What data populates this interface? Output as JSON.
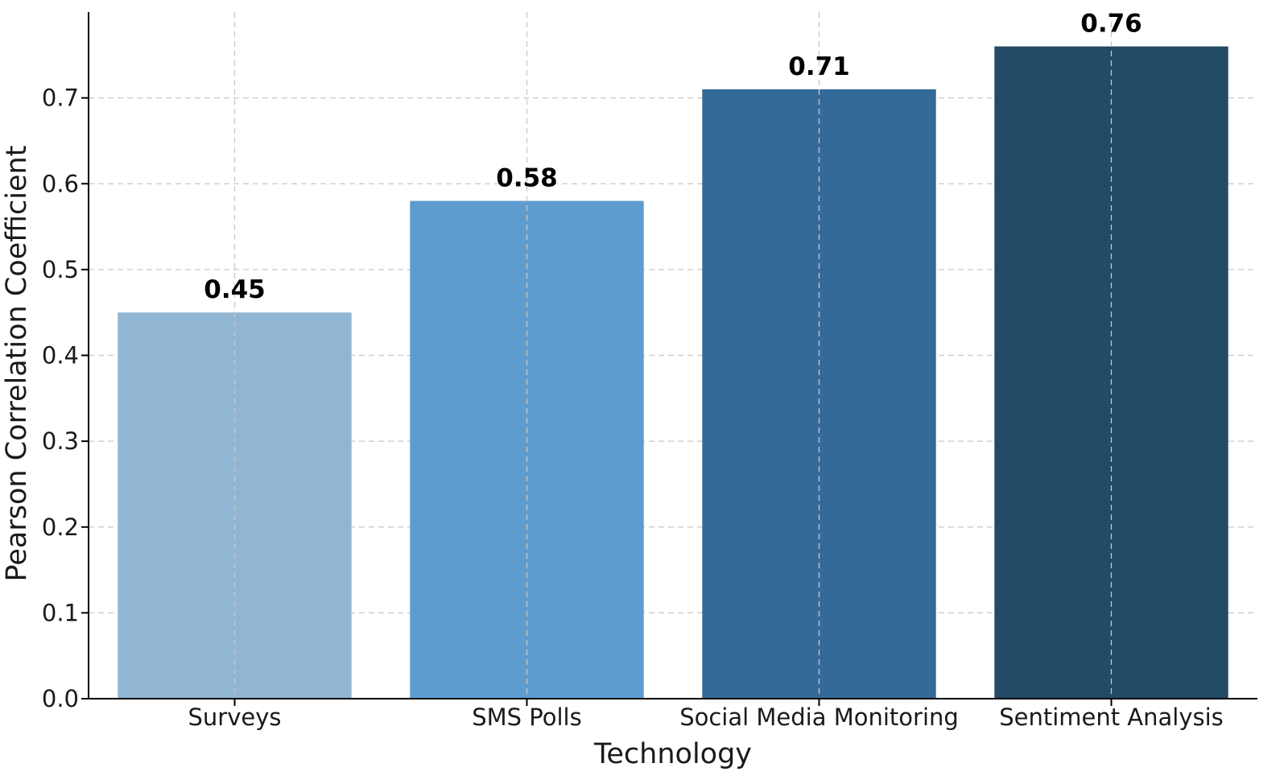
{
  "chart_data": {
    "type": "bar",
    "title": "",
    "xlabel": "Technology",
    "ylabel": "Pearson Correlation Coefficient",
    "categories": [
      "Surveys",
      "SMS Polls",
      "Social Media Monitoring",
      "Sentiment Analysis"
    ],
    "values": [
      0.45,
      0.58,
      0.71,
      0.76
    ],
    "value_labels": [
      "0.45",
      "0.58",
      "0.71",
      "0.76"
    ],
    "bar_colors": [
      "#91b6d4",
      "#5e9ccf",
      "#346a98",
      "#234a66"
    ],
    "ylim": [
      0.0,
      0.8
    ],
    "yticks": [
      0.0,
      0.1,
      0.2,
      0.3,
      0.4,
      0.5,
      0.6,
      0.7
    ],
    "ytick_labels": [
      "0.0",
      "0.1",
      "0.2",
      "0.3",
      "0.4",
      "0.5",
      "0.6",
      "0.7"
    ],
    "grid": true,
    "legend": "none"
  }
}
